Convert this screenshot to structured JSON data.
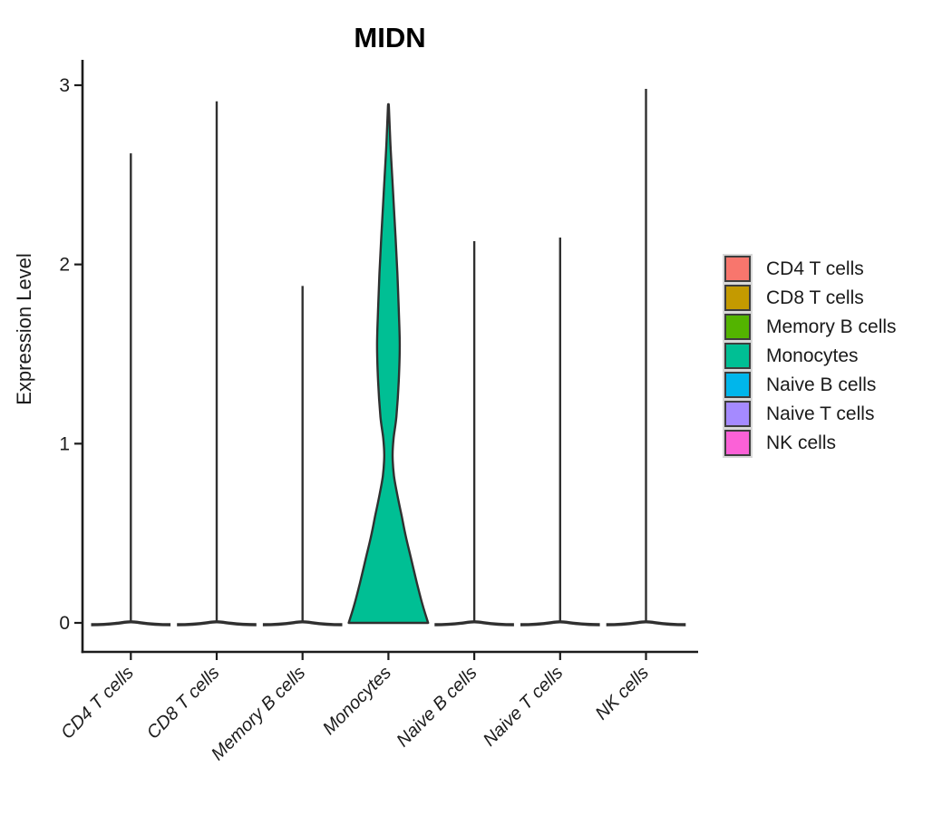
{
  "title": "MIDN",
  "y_axis": {
    "label": "Expression Level",
    "ticks": [
      "0",
      "1",
      "2",
      "3"
    ]
  },
  "x_axis": {
    "categories": [
      "CD4 T cells",
      "CD8 T cells",
      "Memory B cells",
      "Monocytes",
      "Naive B cells",
      "Naive T cells",
      "NK cells"
    ]
  },
  "legend": {
    "position": "right"
  },
  "colors": {
    "axis": "#1c1c1c",
    "violin_stroke": "#303030",
    "background": "#ffffff"
  },
  "chart_data": {
    "type": "violin",
    "title": "MIDN",
    "xlabel": "",
    "ylabel": "Expression Level",
    "ylim": [
      0,
      3.05
    ],
    "y_ticks": [
      0,
      1,
      2,
      3
    ],
    "grid": false,
    "legend_position": "right",
    "categories": [
      "CD4 T cells",
      "CD8 T cells",
      "Memory B cells",
      "Monocytes",
      "Naive B cells",
      "Naive T cells",
      "NK cells"
    ],
    "series": [
      {
        "name": "CD4 T cells",
        "color": "#F8766D",
        "max_expression": 2.62,
        "shape": "spike"
      },
      {
        "name": "CD8 T cells",
        "color": "#C49A00",
        "max_expression": 2.91,
        "shape": "spike"
      },
      {
        "name": "Memory B cells",
        "color": "#53B400",
        "max_expression": 1.88,
        "shape": "spike"
      },
      {
        "name": "Monocytes",
        "color": "#00BF94",
        "max_expression": 2.88,
        "shape": "violin",
        "density_profile": [
          [
            0.0,
            1.0
          ],
          [
            0.1,
            0.86
          ],
          [
            0.22,
            0.72
          ],
          [
            0.35,
            0.58
          ],
          [
            0.48,
            0.44
          ],
          [
            0.6,
            0.33
          ],
          [
            0.72,
            0.22
          ],
          [
            0.82,
            0.14
          ],
          [
            0.93,
            0.105
          ],
          [
            1.03,
            0.13
          ],
          [
            1.15,
            0.2
          ],
          [
            1.35,
            0.26
          ],
          [
            1.55,
            0.285
          ],
          [
            1.75,
            0.26
          ],
          [
            1.95,
            0.225
          ],
          [
            2.15,
            0.18
          ],
          [
            2.35,
            0.13
          ],
          [
            2.55,
            0.08
          ],
          [
            2.72,
            0.04
          ],
          [
            2.88,
            0.012
          ]
        ]
      },
      {
        "name": "Naive B cells",
        "color": "#00B6EB",
        "max_expression": 2.13,
        "shape": "spike"
      },
      {
        "name": "Naive T cells",
        "color": "#A58AFF",
        "max_expression": 2.15,
        "shape": "spike"
      },
      {
        "name": "NK cells",
        "color": "#FB61D7",
        "max_expression": 2.98,
        "shape": "spike"
      }
    ]
  }
}
